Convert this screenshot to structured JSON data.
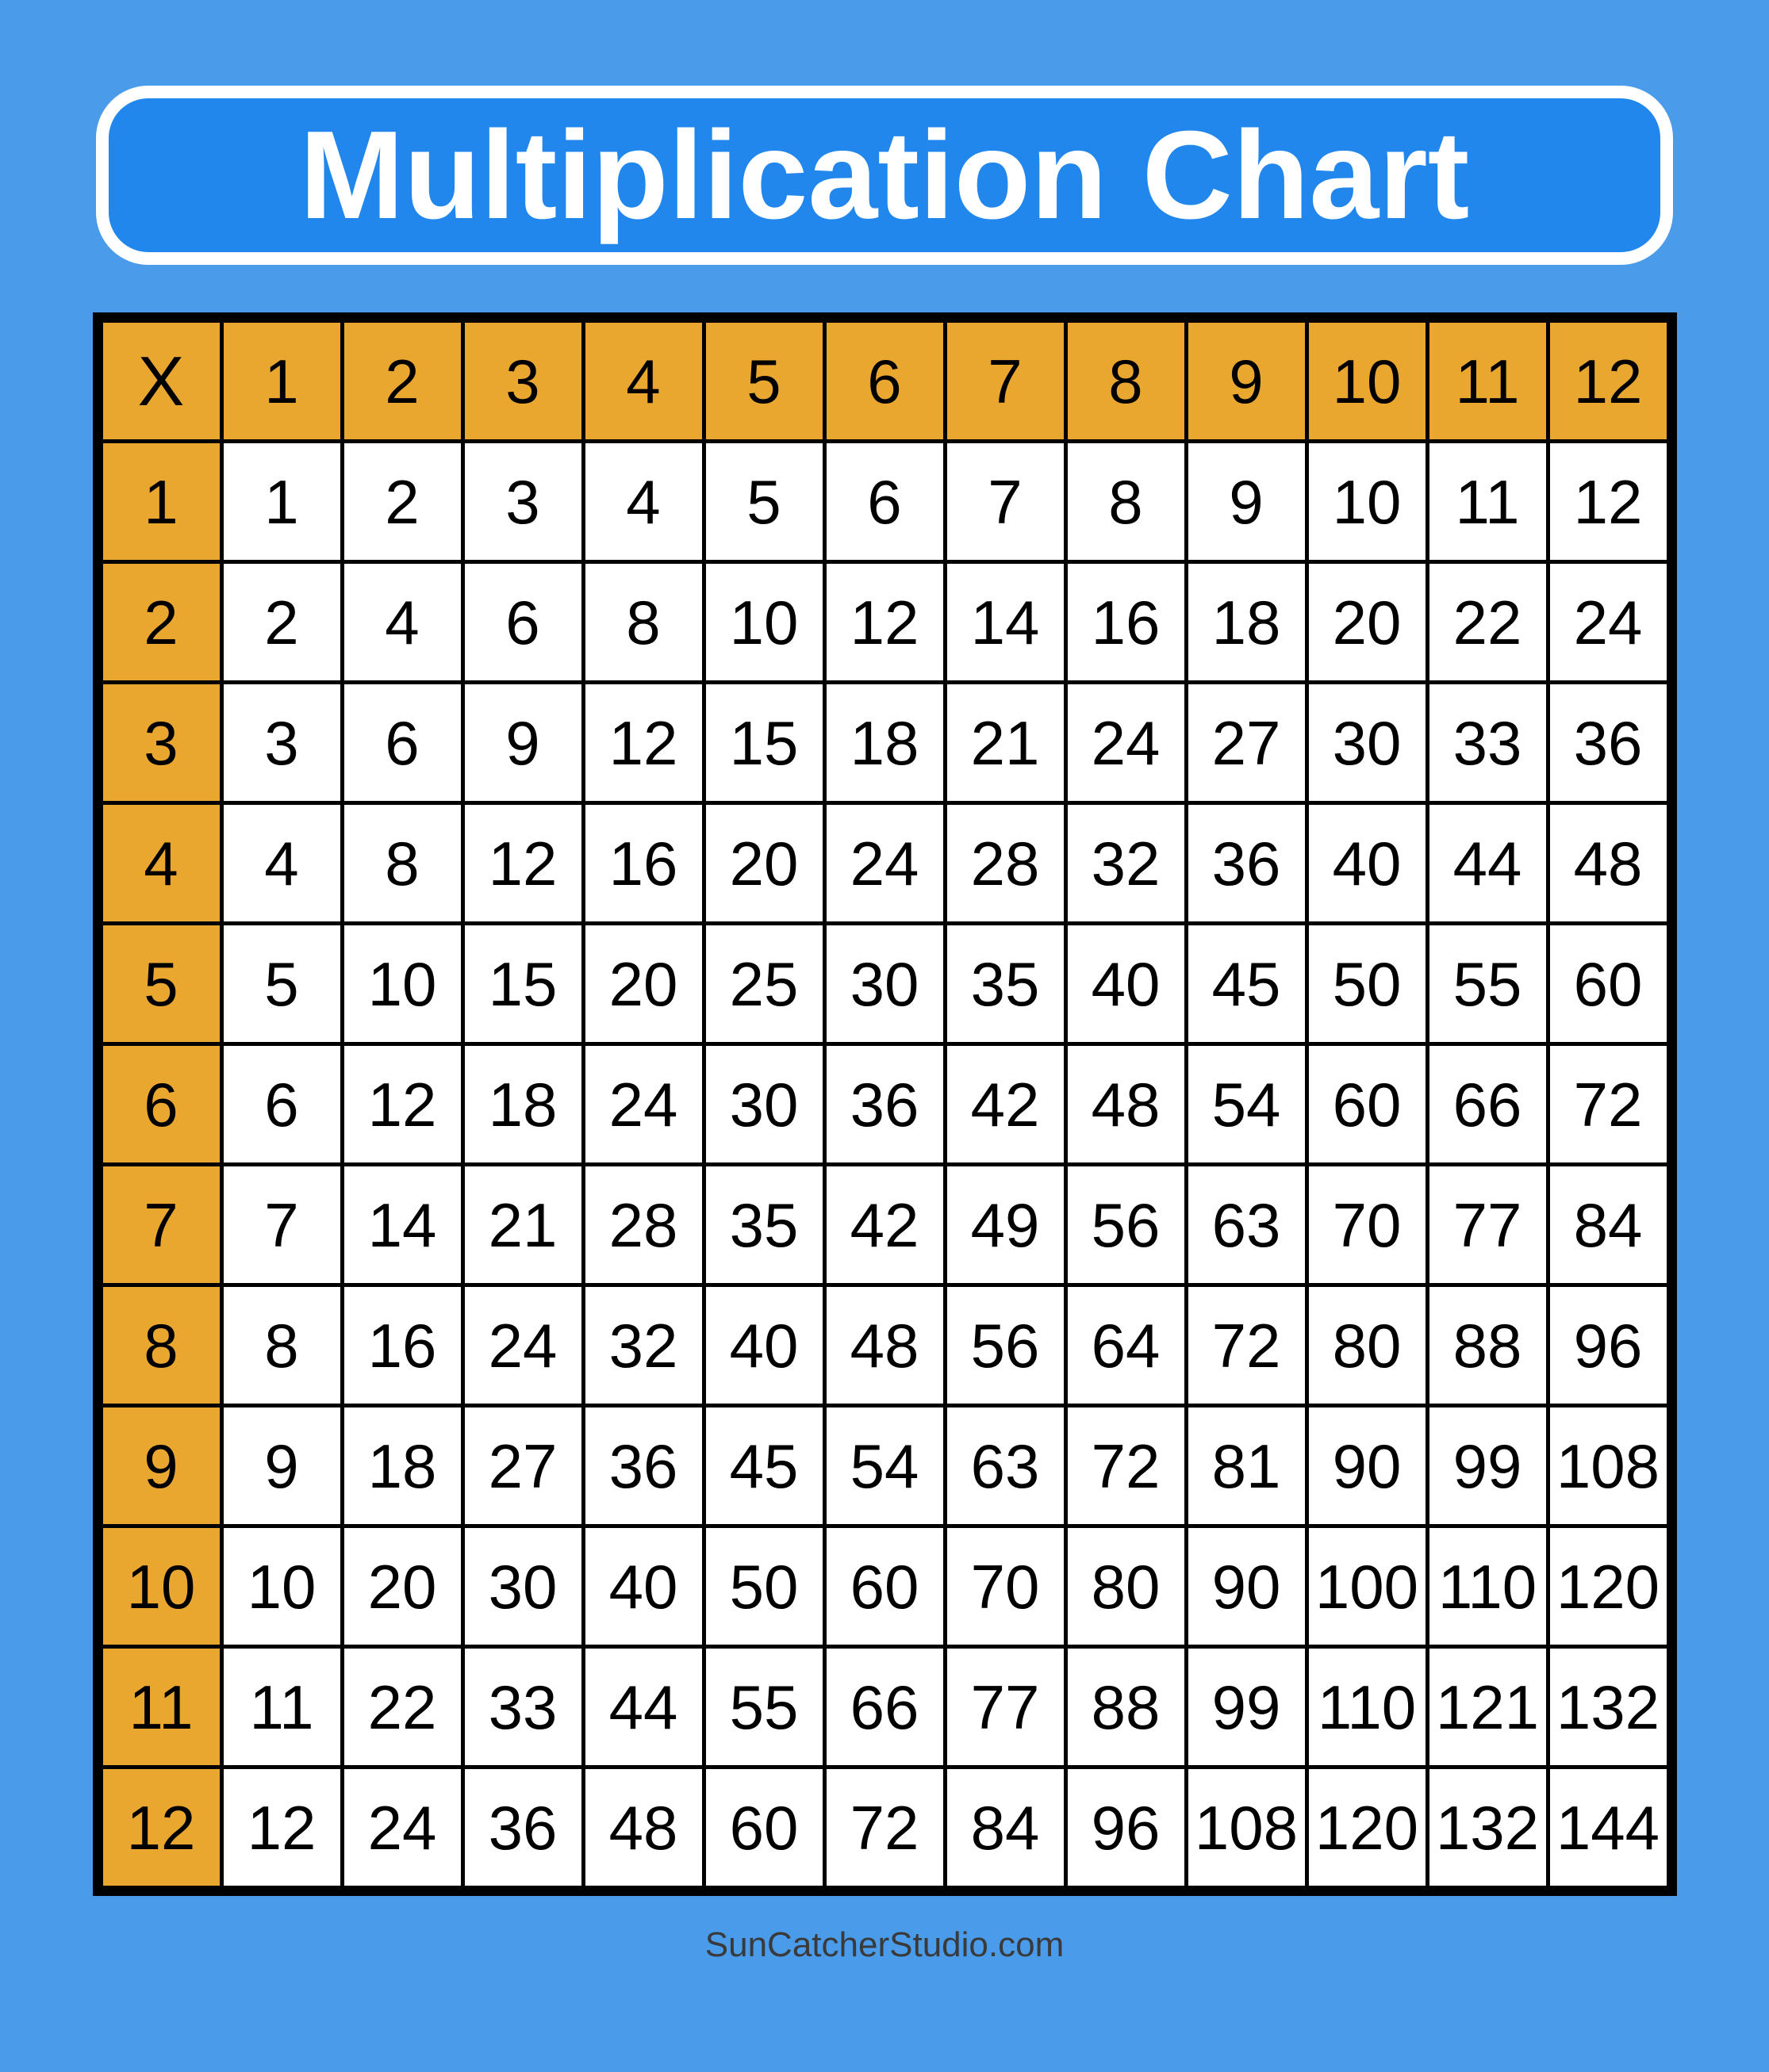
{
  "title": "Multiplication Chart",
  "footer": {
    "credit": "SunCatcherStudio.com"
  },
  "colors": {
    "page_background": "#4A9BEA",
    "banner_fill": "#2187EC",
    "banner_border": "#FFFFFF",
    "title_text": "#FFFFFF",
    "header_fill": "#EAA72F",
    "cell_fill": "#FFFFFF",
    "grid_line": "#000000",
    "cell_text": "#000000",
    "footer_text": "#3A3A3A"
  },
  "chart_data": {
    "type": "table",
    "title": "Multiplication Chart",
    "corner_label": "X",
    "column_headers": [
      1,
      2,
      3,
      4,
      5,
      6,
      7,
      8,
      9,
      10,
      11,
      12
    ],
    "row_headers": [
      1,
      2,
      3,
      4,
      5,
      6,
      7,
      8,
      9,
      10,
      11,
      12
    ],
    "values": [
      [
        1,
        2,
        3,
        4,
        5,
        6,
        7,
        8,
        9,
        10,
        11,
        12
      ],
      [
        2,
        4,
        6,
        8,
        10,
        12,
        14,
        16,
        18,
        20,
        22,
        24
      ],
      [
        3,
        6,
        9,
        12,
        15,
        18,
        21,
        24,
        27,
        30,
        33,
        36
      ],
      [
        4,
        8,
        12,
        16,
        20,
        24,
        28,
        32,
        36,
        40,
        44,
        48
      ],
      [
        5,
        10,
        15,
        20,
        25,
        30,
        35,
        40,
        45,
        50,
        55,
        60
      ],
      [
        6,
        12,
        18,
        24,
        30,
        36,
        42,
        48,
        54,
        60,
        66,
        72
      ],
      [
        7,
        14,
        21,
        28,
        35,
        42,
        49,
        56,
        63,
        70,
        77,
        84
      ],
      [
        8,
        16,
        24,
        32,
        40,
        48,
        56,
        64,
        72,
        80,
        88,
        96
      ],
      [
        9,
        18,
        27,
        36,
        45,
        54,
        63,
        72,
        81,
        90,
        99,
        108
      ],
      [
        10,
        20,
        30,
        40,
        50,
        60,
        70,
        80,
        90,
        100,
        110,
        120
      ],
      [
        11,
        22,
        33,
        44,
        55,
        66,
        77,
        88,
        99,
        110,
        121,
        132
      ],
      [
        12,
        24,
        36,
        48,
        60,
        72,
        84,
        96,
        108,
        120,
        132,
        144
      ]
    ]
  }
}
